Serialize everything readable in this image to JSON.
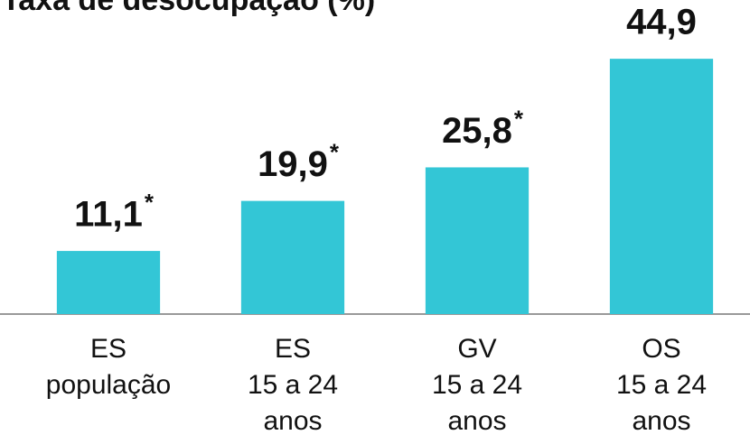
{
  "chart_data": {
    "type": "bar",
    "title": "Taxa de desocupação (%)",
    "categories": [
      [
        "ES",
        "população"
      ],
      [
        "ES",
        "15 a 24",
        "anos"
      ],
      [
        "GV",
        "15 a 24",
        "anos"
      ],
      [
        "OS",
        "15 a 24",
        "anos"
      ]
    ],
    "values": [
      11.1,
      19.9,
      25.8,
      44.9
    ],
    "value_labels": [
      "11,1",
      "19,9",
      "25,8",
      "44,9"
    ],
    "footnote_marks": [
      "*",
      "*",
      "*",
      null
    ],
    "color": "#33c6d6",
    "ylim": [
      0,
      50
    ]
  }
}
